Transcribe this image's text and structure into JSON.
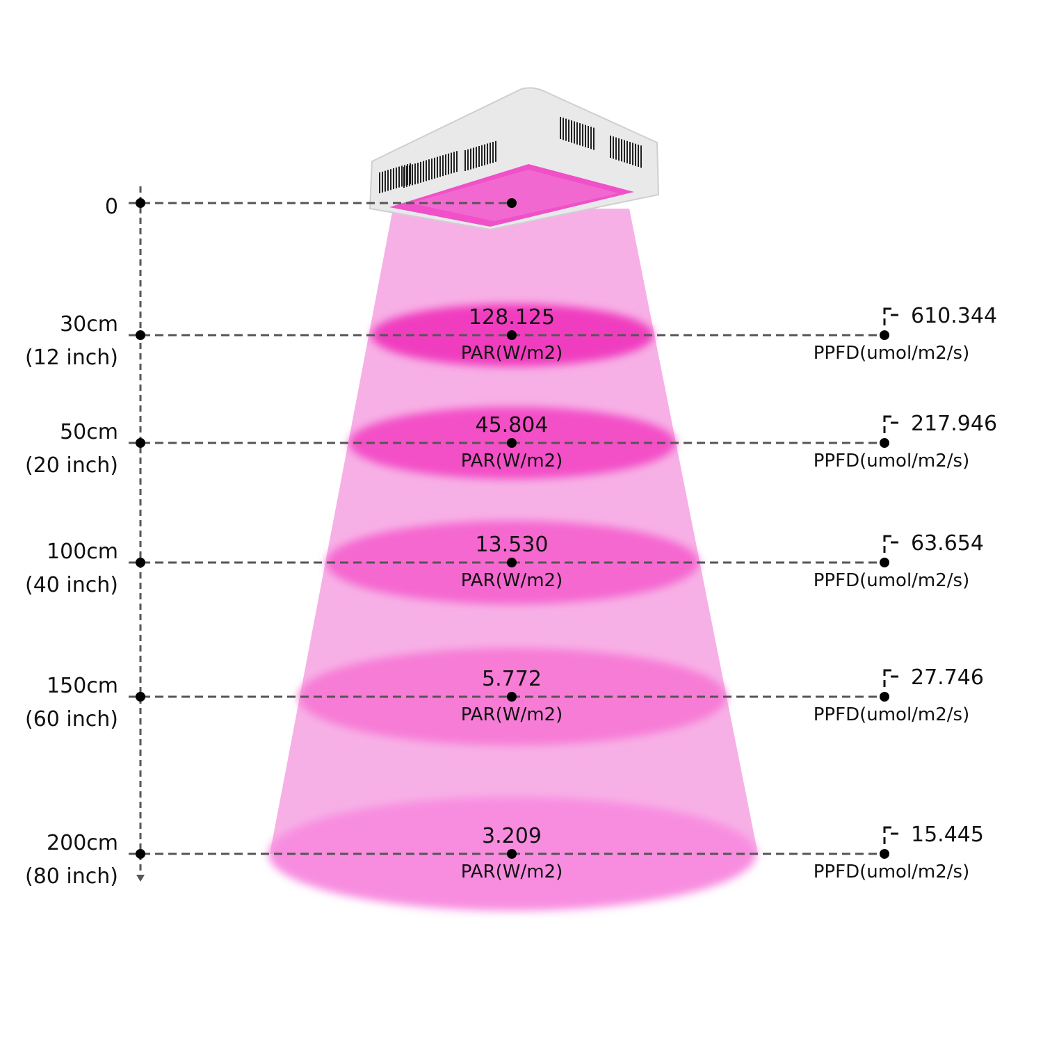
{
  "origin_label": "0",
  "par_unit": "PAR(W/m2)",
  "ppfd_unit": "PPFD(umol/m2/s)",
  "colors": {
    "beam": "#f7b0e6",
    "spot": "#f040c0",
    "lamp_body": "#e9e9ea",
    "led_panel": "#f050c8",
    "dash": "#555555"
  },
  "rows": [
    {
      "cm": "30cm",
      "inch": "(12 inch)",
      "par": "128.125",
      "ppfd": "610.344"
    },
    {
      "cm": "50cm",
      "inch": "(20 inch)",
      "par": "45.804",
      "ppfd": "217.946"
    },
    {
      "cm": "100cm",
      "inch": "(40 inch)",
      "par": "13.530",
      "ppfd": "63.654"
    },
    {
      "cm": "150cm",
      "inch": "(60 inch)",
      "par": "5.772",
      "ppfd": "27.746"
    },
    {
      "cm": "200cm",
      "inch": "(80 inch)",
      "par": "3.209",
      "ppfd": "15.445"
    }
  ]
}
